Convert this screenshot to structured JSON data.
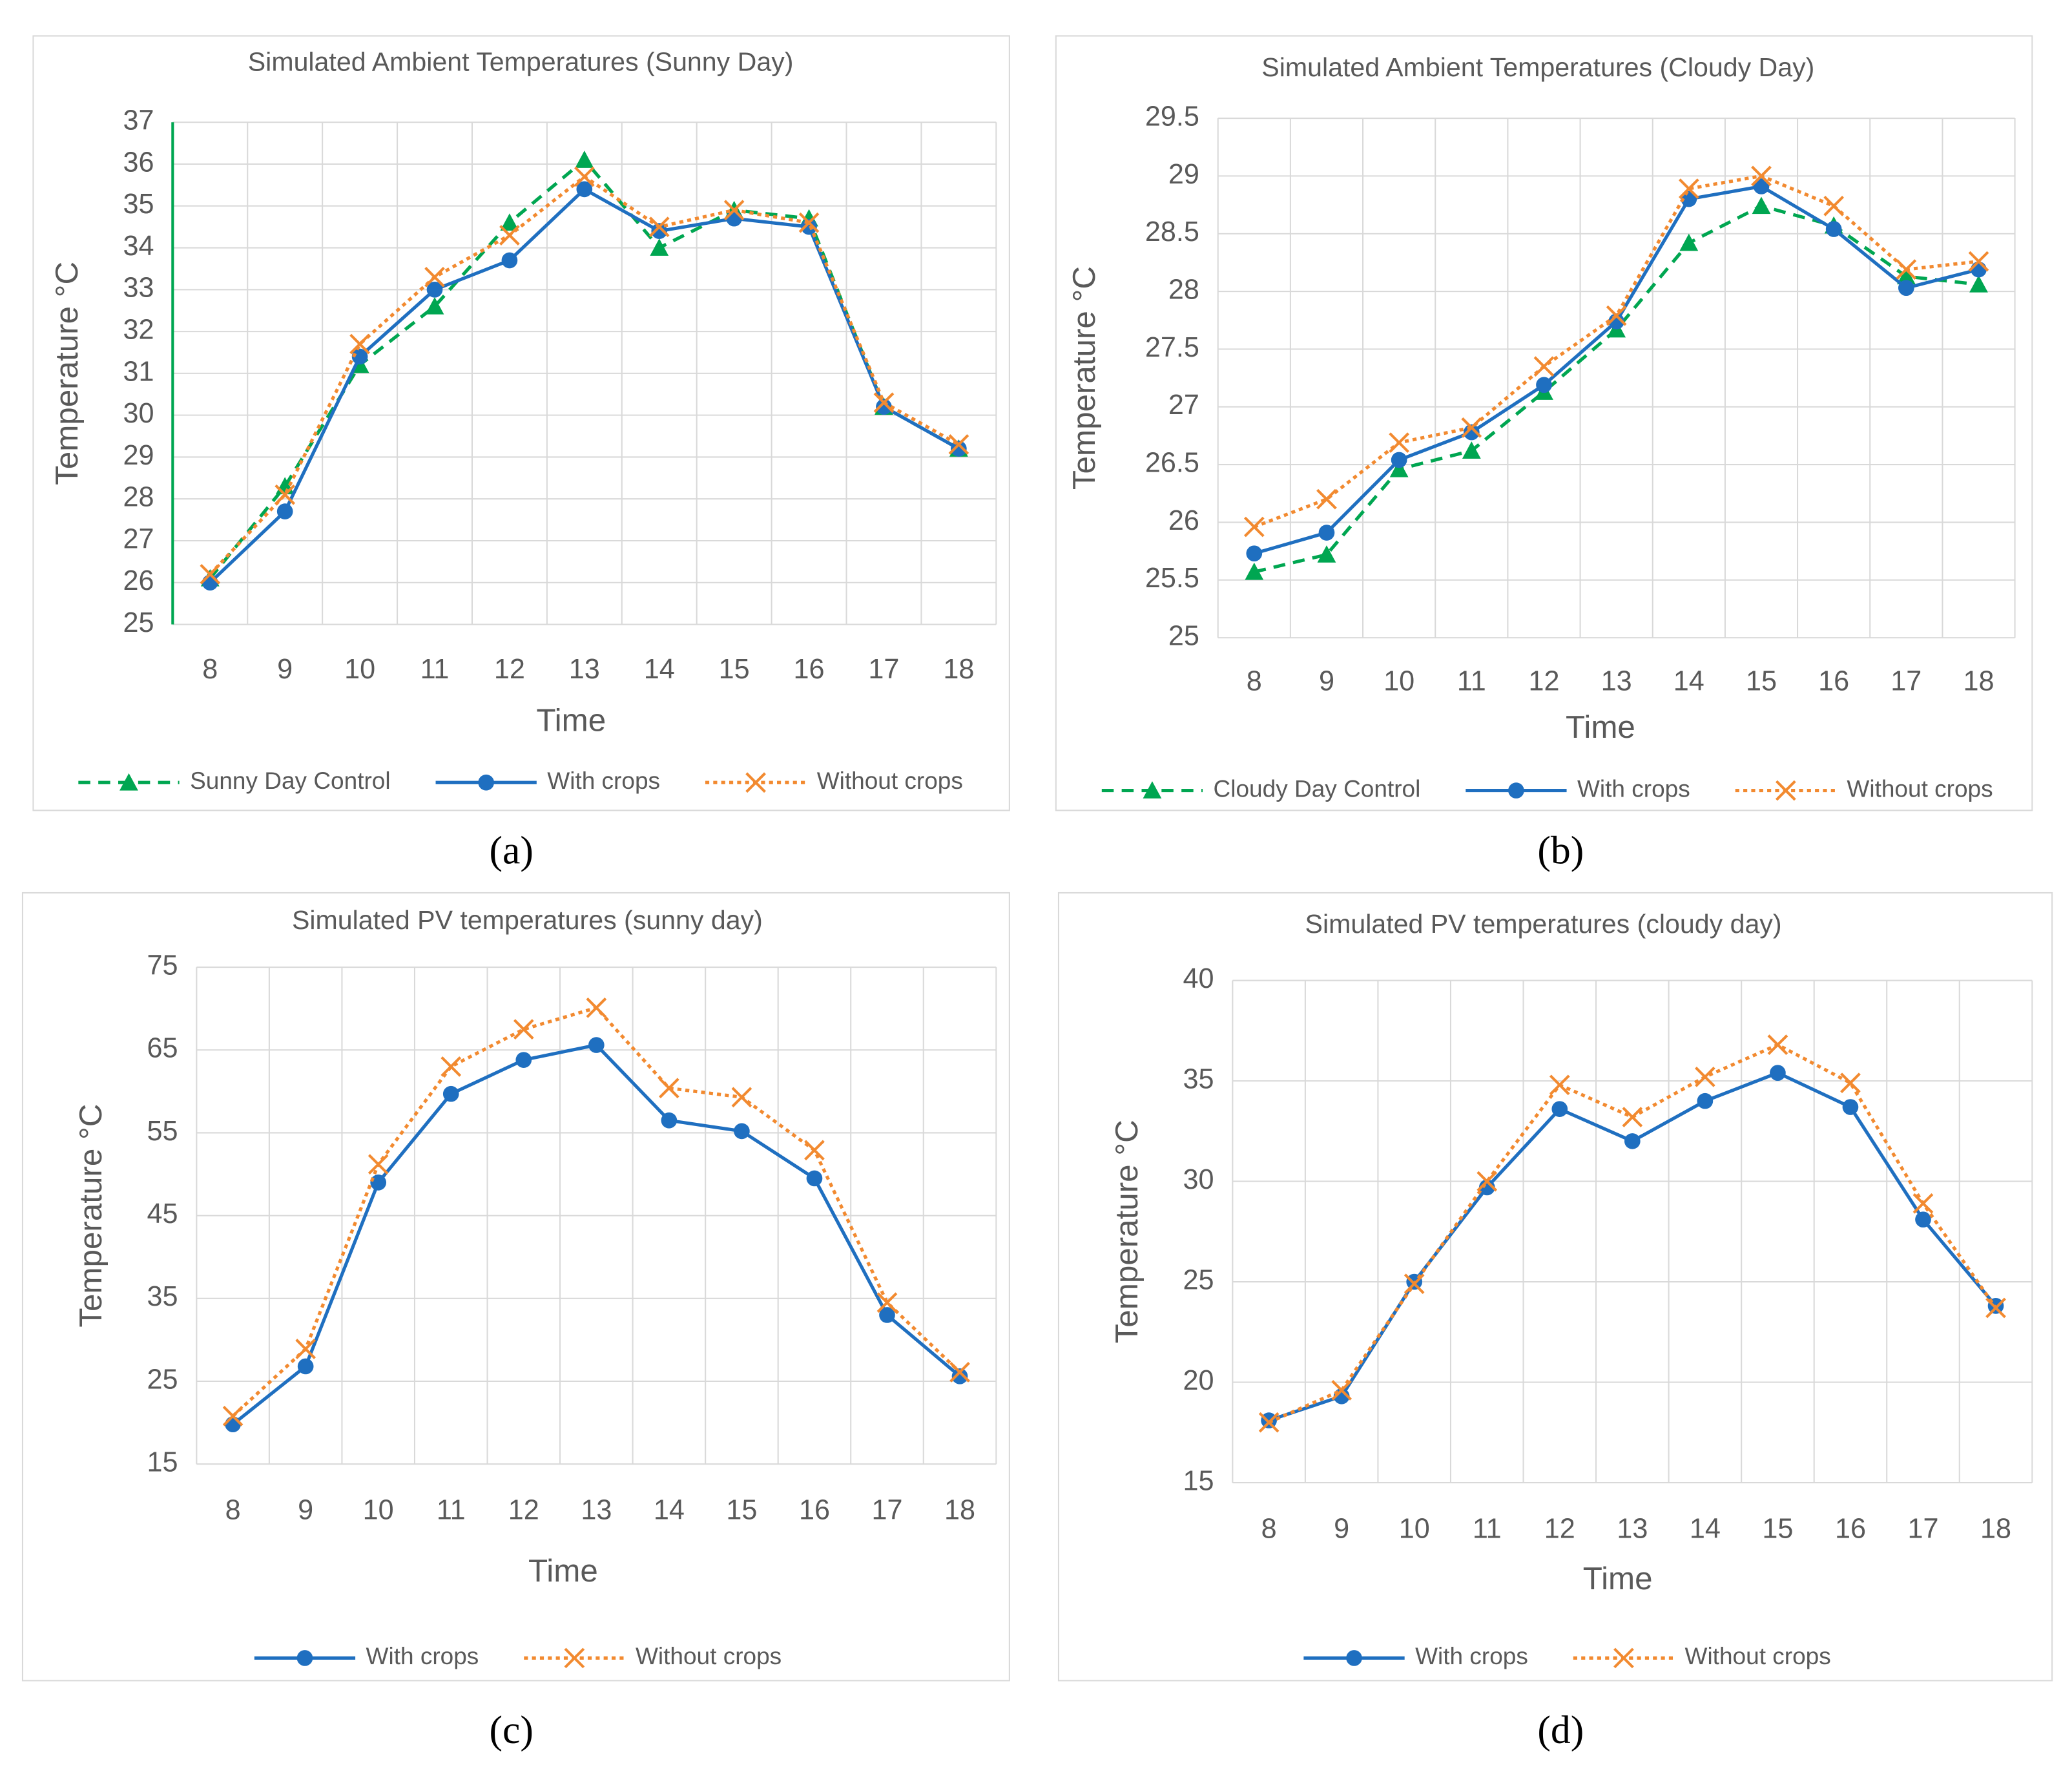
{
  "chart_data": [
    {
      "type": "line",
      "panel": "(a)",
      "title": "Simulated Ambient Temperatures (Sunny Day)",
      "x_label": "Time",
      "y_label": "Temperature °C",
      "categories": [
        8,
        9,
        10,
        11,
        12,
        13,
        14,
        15,
        16,
        17,
        18
      ],
      "ylim": [
        25,
        37
      ],
      "yticks": [
        25,
        26,
        27,
        28,
        29,
        30,
        31,
        32,
        33,
        34,
        35,
        36,
        37
      ],
      "grid": true,
      "legend": "bottom",
      "series": [
        {
          "name": "Sunny Day Control",
          "color": "#00a651",
          "marker": "triangle",
          "dash": "dashed",
          "values": [
            26.1,
            28.3,
            31.2,
            32.6,
            34.6,
            36.1,
            34.0,
            34.9,
            34.7,
            30.2,
            29.2
          ]
        },
        {
          "name": "With crops",
          "color": "#1f6fc0",
          "marker": "circle",
          "dash": "solid",
          "values": [
            26.0,
            27.7,
            31.4,
            33.0,
            33.7,
            35.4,
            34.4,
            34.7,
            34.5,
            30.2,
            29.2
          ]
        },
        {
          "name": "Without crops",
          "color": "#f28a30",
          "marker": "x",
          "dash": "dotted",
          "values": [
            26.2,
            28.1,
            31.7,
            33.3,
            34.3,
            35.7,
            34.5,
            34.9,
            34.6,
            30.3,
            29.3
          ]
        }
      ]
    },
    {
      "type": "line",
      "panel": "(b)",
      "title": "Simulated Ambient Temperatures (Cloudy Day)",
      "x_label": "Time",
      "y_label": "Temperature °C",
      "categories": [
        8,
        9,
        10,
        11,
        12,
        13,
        14,
        15,
        16,
        17,
        18
      ],
      "ylim": [
        25,
        29.5
      ],
      "yticks": [
        25,
        25.5,
        26,
        26.5,
        27,
        27.5,
        28,
        28.5,
        29,
        29.5
      ],
      "grid": true,
      "legend": "bottom",
      "series": [
        {
          "name": "Cloudy Day Control",
          "color": "#00a651",
          "marker": "triangle",
          "dash": "dashed",
          "values": [
            25.57,
            25.72,
            26.46,
            26.62,
            27.13,
            27.67,
            28.42,
            28.74,
            28.57,
            28.13,
            28.06
          ]
        },
        {
          "name": "With crops",
          "color": "#1f6fc0",
          "marker": "circle",
          "dash": "solid",
          "values": [
            25.73,
            25.91,
            26.54,
            26.78,
            27.19,
            27.74,
            28.8,
            28.91,
            28.54,
            28.03,
            28.19
          ]
        },
        {
          "name": "Without crops",
          "color": "#f28a30",
          "marker": "x",
          "dash": "dotted",
          "values": [
            25.96,
            26.2,
            26.69,
            26.82,
            27.35,
            27.79,
            28.89,
            29.0,
            28.74,
            28.19,
            28.26
          ]
        }
      ]
    },
    {
      "type": "line",
      "panel": "(c)",
      "title": "Simulated PV temperatures (sunny day)",
      "x_label": "Time",
      "y_label": "Temperature °C",
      "categories": [
        8,
        9,
        10,
        11,
        12,
        13,
        14,
        15,
        16,
        17,
        18
      ],
      "ylim": [
        15,
        75
      ],
      "yticks": [
        15,
        25,
        35,
        45,
        55,
        65,
        75
      ],
      "grid": true,
      "legend": "bottom",
      "series": [
        {
          "name": "With crops",
          "color": "#1f6fc0",
          "marker": "circle",
          "dash": "solid",
          "values": [
            19.8,
            26.8,
            49.0,
            59.7,
            63.8,
            65.6,
            56.5,
            55.2,
            49.5,
            33.0,
            25.6
          ]
        },
        {
          "name": "Without crops",
          "color": "#f28a30",
          "marker": "x",
          "dash": "dotted",
          "values": [
            20.8,
            28.9,
            51.2,
            63.0,
            67.5,
            70.1,
            60.4,
            59.3,
            52.9,
            34.5,
            26.1
          ]
        }
      ]
    },
    {
      "type": "line",
      "panel": "(d)",
      "title": "Simulated PV temperatures (cloudy day)",
      "x_label": "Time",
      "y_label": "Temperature °C",
      "categories": [
        8,
        9,
        10,
        11,
        12,
        13,
        14,
        15,
        16,
        17,
        18
      ],
      "ylim": [
        15,
        40
      ],
      "yticks": [
        15,
        20,
        25,
        30,
        35,
        40
      ],
      "grid": true,
      "legend": "bottom",
      "series": [
        {
          "name": "With crops",
          "color": "#1f6fc0",
          "marker": "circle",
          "dash": "solid",
          "values": [
            18.1,
            19.3,
            25.0,
            29.7,
            33.6,
            32.0,
            34.0,
            35.4,
            33.7,
            28.1,
            23.8
          ]
        },
        {
          "name": "Without crops",
          "color": "#f28a30",
          "marker": "x",
          "dash": "dotted",
          "values": [
            18.0,
            19.6,
            24.9,
            30.0,
            34.8,
            33.2,
            35.2,
            36.8,
            34.9,
            28.9,
            23.7
          ]
        }
      ]
    }
  ]
}
